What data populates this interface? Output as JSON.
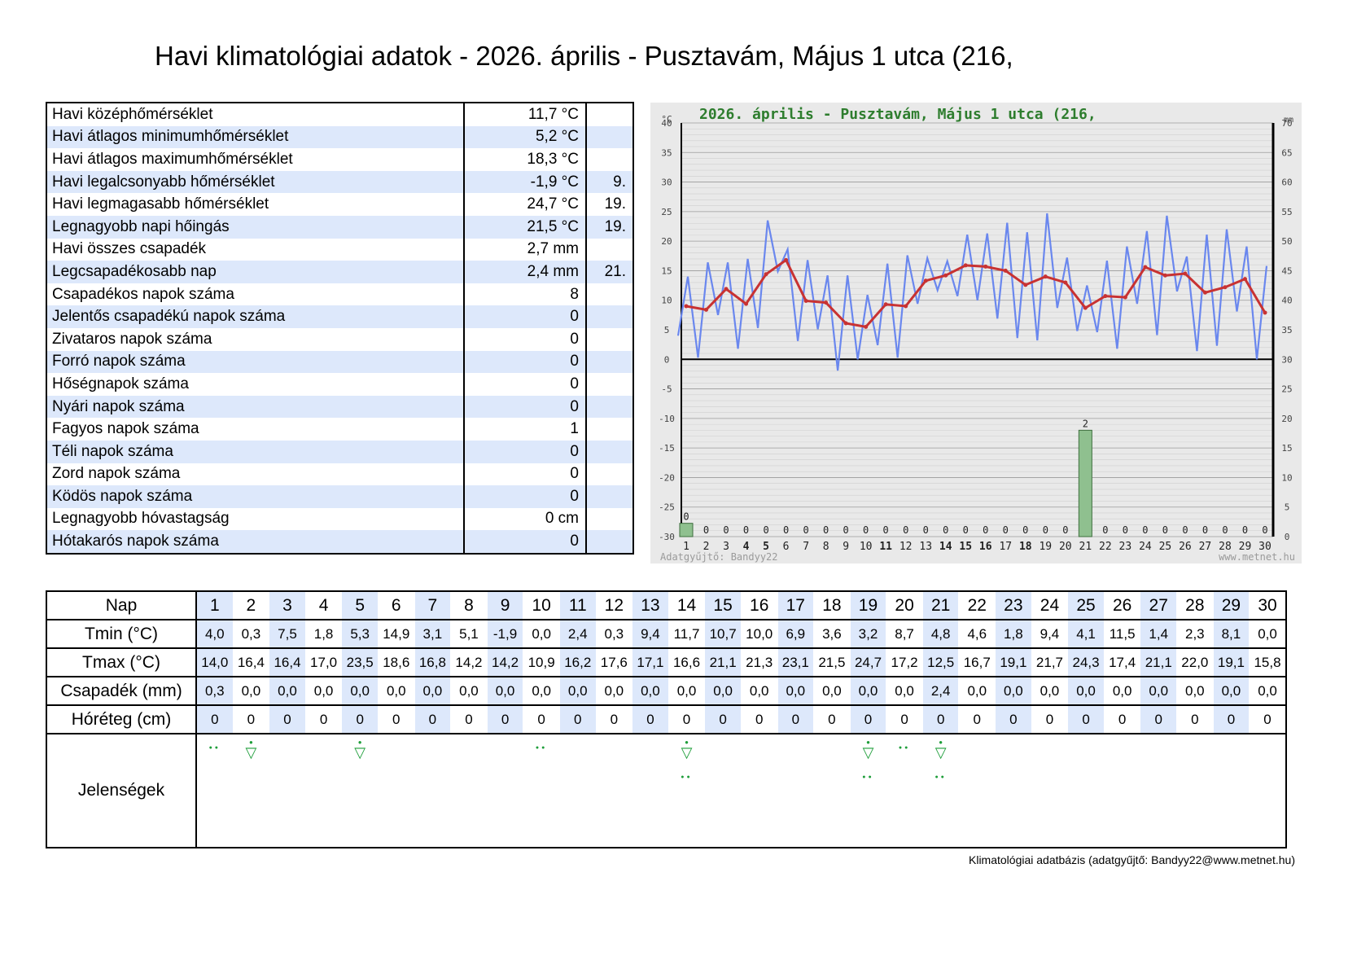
{
  "title": "Havi klimatológiai adatok - 2026. április - Pusztavám, Május 1 utca (216,",
  "summary": [
    {
      "label": "Havi középhőmérséklet",
      "value": "11,7 °C",
      "day": ""
    },
    {
      "label": "Havi átlagos minimumhőmérséklet",
      "value": "5,2 °C",
      "day": ""
    },
    {
      "label": "Havi átlagos maximumhőmérséklet",
      "value": "18,3 °C",
      "day": ""
    },
    {
      "label": "Havi legalcsonyabb hőmérséklet",
      "value": "-1,9 °C",
      "day": "9."
    },
    {
      "label": "Havi legmagasabb hőmérséklet",
      "value": "24,7 °C",
      "day": "19."
    },
    {
      "label": "Legnagyobb napi hőingás",
      "value": "21,5 °C",
      "day": "19."
    },
    {
      "label": "Havi összes csapadék",
      "value": "2,7 mm",
      "day": ""
    },
    {
      "label": "Legcsapadékosabb nap",
      "value": "2,4 mm",
      "day": "21."
    },
    {
      "label": "Csapadékos napok száma",
      "value": "8",
      "day": ""
    },
    {
      "label": "Jelentős csapadékú napok száma",
      "value": "0",
      "day": ""
    },
    {
      "label": "Zivataros napok száma",
      "value": "0",
      "day": ""
    },
    {
      "label": "Forró napok száma",
      "value": "0",
      "day": ""
    },
    {
      "label": "Hőségnapok száma",
      "value": "0",
      "day": ""
    },
    {
      "label": "Nyári napok száma",
      "value": "0",
      "day": ""
    },
    {
      "label": "Fagyos napok száma",
      "value": "1",
      "day": ""
    },
    {
      "label": "Téli napok száma",
      "value": "0",
      "day": ""
    },
    {
      "label": "Zord napok száma",
      "value": "0",
      "day": ""
    },
    {
      "label": "Ködös napok száma",
      "value": "0",
      "day": ""
    },
    {
      "label": "Legnagyobb hóvastagság",
      "value": "0 cm",
      "day": ""
    },
    {
      "label": "Hótakarós napok száma",
      "value": "0",
      "day": ""
    }
  ],
  "daily": {
    "labels": {
      "day": "Nap",
      "tmin": "Tmin (°C)",
      "tmax": "Tmax (°C)",
      "precip": "Csapadék (mm)",
      "snow": "Hóréteg (cm)",
      "phen": "Jelenségek"
    },
    "days": [
      "1",
      "2",
      "3",
      "4",
      "5",
      "6",
      "7",
      "8",
      "9",
      "10",
      "11",
      "12",
      "13",
      "14",
      "15",
      "16",
      "17",
      "18",
      "19",
      "20",
      "21",
      "22",
      "23",
      "24",
      "25",
      "26",
      "27",
      "28",
      "29",
      "30"
    ],
    "tmin": [
      "4,0",
      "0,3",
      "7,5",
      "1,8",
      "5,3",
      "14,9",
      "3,1",
      "5,1",
      "-1,9",
      "0,0",
      "2,4",
      "0,3",
      "9,4",
      "11,7",
      "10,7",
      "10,0",
      "6,9",
      "3,6",
      "3,2",
      "8,7",
      "4,8",
      "4,6",
      "1,8",
      "9,4",
      "4,1",
      "11,5",
      "1,4",
      "2,3",
      "8,1",
      "0,0"
    ],
    "tmax": [
      "14,0",
      "16,4",
      "16,4",
      "17,0",
      "23,5",
      "18,6",
      "16,8",
      "14,2",
      "14,2",
      "10,9",
      "16,2",
      "17,6",
      "17,1",
      "16,6",
      "21,1",
      "21,3",
      "23,1",
      "21,5",
      "24,7",
      "17,2",
      "12,5",
      "16,7",
      "19,1",
      "21,7",
      "24,3",
      "17,4",
      "21,1",
      "22,0",
      "19,1",
      "15,8"
    ],
    "precip": [
      "0,3",
      "0,0",
      "0,0",
      "0,0",
      "0,0",
      "0,0",
      "0,0",
      "0,0",
      "0,0",
      "0,0",
      "0,0",
      "0,0",
      "0,0",
      "0,0",
      "0,0",
      "0,0",
      "0,0",
      "0,0",
      "0,0",
      "0,0",
      "2,4",
      "0,0",
      "0,0",
      "0,0",
      "0,0",
      "0,0",
      "0,0",
      "0,0",
      "0,0",
      "0,0"
    ],
    "snow": [
      "0",
      "0",
      "0",
      "0",
      "0",
      "0",
      "0",
      "0",
      "0",
      "0",
      "0",
      "0",
      "0",
      "0",
      "0",
      "0",
      "0",
      "0",
      "0",
      "0",
      "0",
      "0",
      "0",
      "0",
      "0",
      "0",
      "0",
      "0",
      "0",
      "0"
    ],
    "phenomena": {
      "1": [
        "dew"
      ],
      "2": [
        "rime"
      ],
      "5": [
        "rime"
      ],
      "10": [
        "dew"
      ],
      "14": [
        "rime",
        "dew"
      ],
      "19": [
        "rime",
        "dew"
      ],
      "20": [
        "dew"
      ],
      "21": [
        "rime",
        "dew"
      ]
    }
  },
  "chart_data": {
    "type": "line",
    "title": "2026. április - Pusztavám, Május 1 utca (216,",
    "left_unit": "°C",
    "right_unit": "mm",
    "temp_ylim": [
      -30,
      40
    ],
    "temp_ticks": [
      "40",
      "35",
      "30",
      "25",
      "20",
      "15",
      "10",
      "5",
      "0",
      "-5",
      "-10",
      "-15",
      "-20",
      "-25",
      "-30"
    ],
    "precip_ylim": [
      0,
      70
    ],
    "precip_ticks": [
      "70",
      "65",
      "60",
      "55",
      "50",
      "45",
      "40",
      "35",
      "30",
      "25",
      "20",
      "15",
      "10",
      "5",
      "0"
    ],
    "x": [
      1,
      2,
      3,
      4,
      5,
      6,
      7,
      8,
      9,
      10,
      11,
      12,
      13,
      14,
      15,
      16,
      17,
      18,
      19,
      20,
      21,
      22,
      23,
      24,
      25,
      26,
      27,
      28,
      29,
      30
    ],
    "series": [
      {
        "name": "",
        "color": "#6a87ee",
        "kind": "tmin-tmax zigzag"
      },
      {
        "name": "",
        "color": "#c83232",
        "kind": "daily mean",
        "values": [
          9.0,
          8.4,
          11.9,
          9.4,
          14.4,
          16.8,
          9.9,
          9.6,
          6.1,
          5.5,
          9.3,
          9.0,
          13.3,
          14.2,
          15.9,
          15.7,
          15.0,
          12.6,
          14.0,
          13.0,
          8.7,
          10.7,
          10.5,
          15.6,
          14.2,
          14.5,
          11.3,
          12.2,
          13.6,
          7.9
        ]
      }
    ],
    "precip_labels": [
      "0",
      "0",
      "0",
      "0",
      "0",
      "0",
      "0",
      "0",
      "0",
      "0",
      "0",
      "0",
      "0",
      "0",
      "0",
      "0",
      "0",
      "0",
      "0",
      "0",
      "2",
      "0",
      "0",
      "0",
      "0",
      "0",
      "0",
      "0",
      "0",
      "0"
    ],
    "bold_days": [
      4,
      5,
      11,
      14,
      15,
      16,
      18
    ],
    "footer_left": "Adatgyűjtő: Bandyy22",
    "footer_right": "www.metnet.hu",
    "colors": {
      "tmin_tmax": "#6a87ee",
      "mean": "#c83232",
      "precip_bar": "#8fc08f",
      "bg": "#e9e9e9"
    }
  },
  "footer": "Klimatológiai adatbázis (adatgyűjtő: Bandyy22@www.metnet.hu)"
}
